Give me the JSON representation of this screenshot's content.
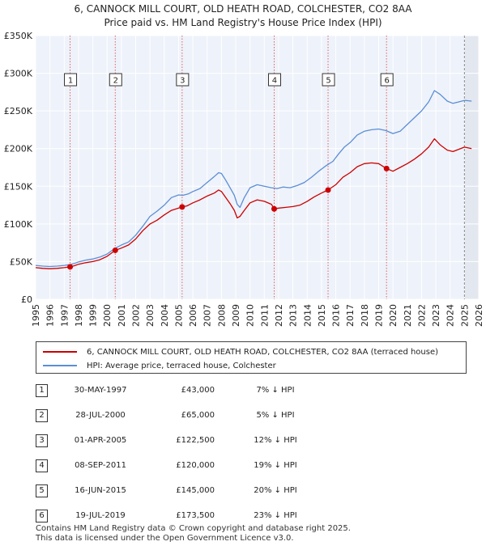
{
  "title_line1": "6, CANNOCK MILL COURT, OLD HEATH ROAD, COLCHESTER, CO2 8AA",
  "title_line2": "Price paid vs. HM Land Registry's House Price Index (HPI)",
  "chart_data": {
    "type": "line",
    "y_ticks": [
      "£0",
      "£50K",
      "£100K",
      "£150K",
      "£200K",
      "£250K",
      "£300K",
      "£350K"
    ],
    "ylim": [
      0,
      350000
    ],
    "xlim": [
      1995,
      2026
    ],
    "x_ticks": [
      "1995",
      "1996",
      "1997",
      "1998",
      "1999",
      "2000",
      "2001",
      "2002",
      "2003",
      "2004",
      "2005",
      "2006",
      "2007",
      "2008",
      "2009",
      "2010",
      "2011",
      "2012",
      "2013",
      "2014",
      "2015",
      "2016",
      "2017",
      "2018",
      "2019",
      "2020",
      "2021",
      "2022",
      "2023",
      "2024",
      "2025",
      "2026"
    ],
    "series": [
      {
        "name": "HPI: Average price, terraced house, Colchester",
        "color": "#5b8ed6",
        "points": [
          [
            1995.0,
            45000
          ],
          [
            1995.5,
            44000
          ],
          [
            1996.0,
            43500
          ],
          [
            1996.5,
            44000
          ],
          [
            1997.0,
            45000
          ],
          [
            1997.4,
            46000
          ],
          [
            1997.7,
            47500
          ],
          [
            1998.0,
            49500
          ],
          [
            1998.5,
            52000
          ],
          [
            1999.0,
            53500
          ],
          [
            1999.5,
            56000
          ],
          [
            2000.0,
            60000
          ],
          [
            2000.5,
            67000
          ],
          [
            2001.0,
            72000
          ],
          [
            2001.5,
            76000
          ],
          [
            2002.0,
            85000
          ],
          [
            2002.5,
            97000
          ],
          [
            2003.0,
            110000
          ],
          [
            2003.5,
            117000
          ],
          [
            2004.0,
            125000
          ],
          [
            2004.5,
            135000
          ],
          [
            2005.0,
            138500
          ],
          [
            2005.3,
            138000
          ],
          [
            2005.7,
            140000
          ],
          [
            2006.0,
            143000
          ],
          [
            2006.5,
            147000
          ],
          [
            2007.0,
            155000
          ],
          [
            2007.5,
            163000
          ],
          [
            2007.8,
            168000
          ],
          [
            2008.0,
            167000
          ],
          [
            2008.3,
            158000
          ],
          [
            2008.6,
            148000
          ],
          [
            2008.9,
            138000
          ],
          [
            2009.1,
            126000
          ],
          [
            2009.3,
            122000
          ],
          [
            2009.6,
            135000
          ],
          [
            2010.0,
            148000
          ],
          [
            2010.5,
            152000
          ],
          [
            2011.0,
            150000
          ],
          [
            2011.5,
            148000
          ],
          [
            2011.9,
            147000
          ],
          [
            2012.3,
            149000
          ],
          [
            2012.8,
            148000
          ],
          [
            2013.3,
            151000
          ],
          [
            2013.8,
            155000
          ],
          [
            2014.3,
            162000
          ],
          [
            2014.8,
            170000
          ],
          [
            2015.3,
            177000
          ],
          [
            2015.8,
            183000
          ],
          [
            2016.2,
            193000
          ],
          [
            2016.6,
            202000
          ],
          [
            2017.0,
            208000
          ],
          [
            2017.5,
            218000
          ],
          [
            2018.0,
            223000
          ],
          [
            2018.5,
            225000
          ],
          [
            2019.0,
            226000
          ],
          [
            2019.5,
            224000
          ],
          [
            2020.0,
            220000
          ],
          [
            2020.5,
            223000
          ],
          [
            2021.0,
            232000
          ],
          [
            2021.5,
            241000
          ],
          [
            2022.0,
            250000
          ],
          [
            2022.5,
            262000
          ],
          [
            2022.9,
            277000
          ],
          [
            2023.3,
            272000
          ],
          [
            2023.8,
            263000
          ],
          [
            2024.2,
            260000
          ],
          [
            2024.6,
            262000
          ],
          [
            2025.0,
            264000
          ],
          [
            2025.5,
            263000
          ]
        ]
      },
      {
        "name": "6, CANNOCK MILL COURT, OLD HEATH ROAD, COLCHESTER, CO2 8AA (terraced house)",
        "color": "#cc0000",
        "points": [
          [
            1995.0,
            42000
          ],
          [
            1995.5,
            41000
          ],
          [
            1996.0,
            40500
          ],
          [
            1996.5,
            41000
          ],
          [
            1997.0,
            42000
          ],
          [
            1997.41,
            43000
          ],
          [
            1997.7,
            44500
          ],
          [
            1998.0,
            46500
          ],
          [
            1998.5,
            48500
          ],
          [
            1999.0,
            50000
          ],
          [
            1999.5,
            52500
          ],
          [
            2000.0,
            57000
          ],
          [
            2000.57,
            65000
          ],
          [
            2001.0,
            68000
          ],
          [
            2001.5,
            72000
          ],
          [
            2002.0,
            80000
          ],
          [
            2002.5,
            91000
          ],
          [
            2003.0,
            100000
          ],
          [
            2003.5,
            105000
          ],
          [
            2004.0,
            112000
          ],
          [
            2004.5,
            118000
          ],
          [
            2005.0,
            121000
          ],
          [
            2005.25,
            122500
          ],
          [
            2005.6,
            124000
          ],
          [
            2006.0,
            128000
          ],
          [
            2006.5,
            132000
          ],
          [
            2007.0,
            137000
          ],
          [
            2007.5,
            141000
          ],
          [
            2007.8,
            145000
          ],
          [
            2008.0,
            143000
          ],
          [
            2008.3,
            135000
          ],
          [
            2008.6,
            127000
          ],
          [
            2008.9,
            118000
          ],
          [
            2009.1,
            108000
          ],
          [
            2009.3,
            110000
          ],
          [
            2009.6,
            118000
          ],
          [
            2010.0,
            128000
          ],
          [
            2010.5,
            132000
          ],
          [
            2011.0,
            130000
          ],
          [
            2011.5,
            126000
          ],
          [
            2011.69,
            120000
          ],
          [
            2012.0,
            121000
          ],
          [
            2012.5,
            122000
          ],
          [
            2013.0,
            123000
          ],
          [
            2013.5,
            125000
          ],
          [
            2014.0,
            130000
          ],
          [
            2014.5,
            136000
          ],
          [
            2015.0,
            141000
          ],
          [
            2015.46,
            145000
          ],
          [
            2016.0,
            152000
          ],
          [
            2016.5,
            162000
          ],
          [
            2017.0,
            168000
          ],
          [
            2017.5,
            176000
          ],
          [
            2018.0,
            180000
          ],
          [
            2018.5,
            181000
          ],
          [
            2019.0,
            180000
          ],
          [
            2019.55,
            173500
          ],
          [
            2020.0,
            170000
          ],
          [
            2020.5,
            175000
          ],
          [
            2021.0,
            180000
          ],
          [
            2021.5,
            186000
          ],
          [
            2022.0,
            193000
          ],
          [
            2022.5,
            202000
          ],
          [
            2022.9,
            213000
          ],
          [
            2023.3,
            205000
          ],
          [
            2023.8,
            198000
          ],
          [
            2024.2,
            196000
          ],
          [
            2024.6,
            199000
          ],
          [
            2025.0,
            202000
          ],
          [
            2025.5,
            200000
          ]
        ]
      }
    ],
    "sales": [
      {
        "label": "1",
        "x": 1997.41,
        "y": 43000
      },
      {
        "label": "2",
        "x": 2000.57,
        "y": 65000
      },
      {
        "label": "3",
        "x": 2005.25,
        "y": 122500
      },
      {
        "label": "4",
        "x": 2011.69,
        "y": 120000
      },
      {
        "label": "5",
        "x": 2015.46,
        "y": 145000
      },
      {
        "label": "6",
        "x": 2019.55,
        "y": 173500
      }
    ],
    "shaded_from": 2025.0
  },
  "legend": {
    "property_label": "6, CANNOCK MILL COURT, OLD HEATH ROAD, COLCHESTER, CO2 8AA (terraced house)",
    "hpi_label": "HPI: Average price, terraced house, Colchester"
  },
  "transactions": [
    {
      "num": "1",
      "date": "30-MAY-1997",
      "price": "£43,000",
      "pct": "7% ↓ HPI"
    },
    {
      "num": "2",
      "date": "28-JUL-2000",
      "price": "£65,000",
      "pct": "5% ↓ HPI"
    },
    {
      "num": "3",
      "date": "01-APR-2005",
      "price": "£122,500",
      "pct": "12% ↓ HPI"
    },
    {
      "num": "4",
      "date": "08-SEP-2011",
      "price": "£120,000",
      "pct": "19% ↓ HPI"
    },
    {
      "num": "5",
      "date": "16-JUN-2015",
      "price": "£145,000",
      "pct": "20% ↓ HPI"
    },
    {
      "num": "6",
      "date": "19-JUL-2019",
      "price": "£173,500",
      "pct": "23% ↓ HPI"
    }
  ],
  "footer_line1": "Contains HM Land Registry data © Crown copyright and database right 2025.",
  "footer_line2": "This data is licensed under the Open Government Licence v3.0."
}
